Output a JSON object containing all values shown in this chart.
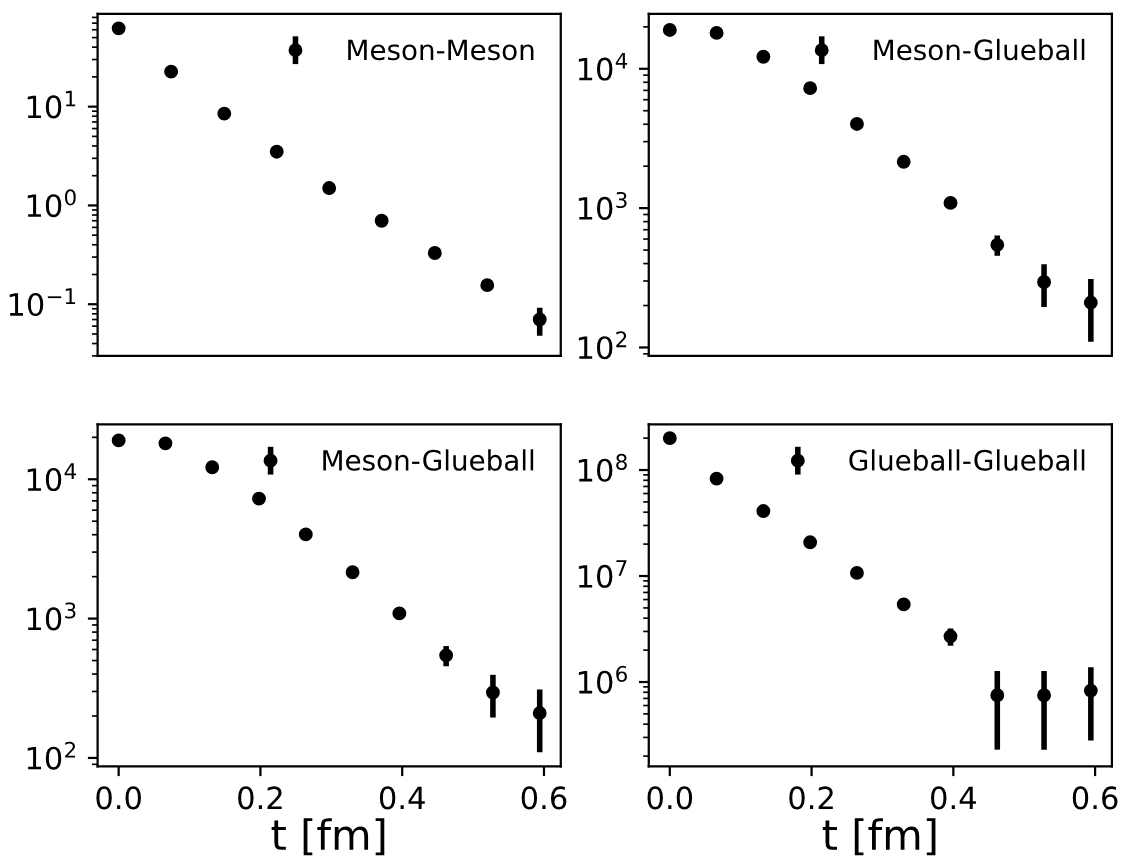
{
  "chart_data": [
    {
      "type": "scatter",
      "x": [
        0,
        0.074,
        0.149,
        0.223,
        0.297,
        0.371,
        0.446,
        0.52,
        0.594
      ],
      "xlim": [
        -0.0297,
        0.6237
      ],
      "log": "y",
      "ylim": [
        0.03,
        87
      ],
      "yticks": [
        {
          "value": 0.1,
          "label": "10$^{−1}$"
        },
        {
          "value": 1,
          "label": "10$^{0}$"
        },
        {
          "value": 10,
          "label": "10$^{1}$"
        }
      ],
      "tick_labels": "y",
      "legend": "top right",
      "marker": "circle",
      "series": [
        {
          "name": "Meson-Meson",
          "color": "#000000",
          "values": [
            62,
            22.6,
            8.5,
            3.5,
            1.5,
            0.7,
            0.33,
            0.156,
            0.07
          ],
          "errors": [
            null,
            null,
            null,
            null,
            null,
            null,
            null,
            0.015,
            0.022
          ]
        }
      ]
    },
    {
      "type": "scatter",
      "x": [
        0,
        0.066,
        0.132,
        0.198,
        0.264,
        0.33,
        0.396,
        0.462,
        0.528,
        0.594
      ],
      "xlim": [
        -0.0297,
        0.6237
      ],
      "log": "y",
      "ylim": [
        87,
        24800
      ],
      "yticks": [
        {
          "value": 100,
          "label": "10$^{2}$"
        },
        {
          "value": 1000,
          "label": "10$^{3}$"
        },
        {
          "value": 10000,
          "label": "10$^{4}$"
        }
      ],
      "tick_labels": "y",
      "legend": "top right",
      "marker": "circle",
      "series": [
        {
          "name": "Meson-Glueball",
          "color": "#000000",
          "values": [
            19000,
            18100,
            12200,
            7260,
            4020,
            2150,
            1090,
            545,
            295,
            210
          ],
          "errors": [
            null,
            null,
            null,
            null,
            null,
            null,
            null,
            90,
            100,
            100
          ]
        }
      ]
    },
    {
      "type": "scatter",
      "x": [
        0,
        0.066,
        0.132,
        0.198,
        0.264,
        0.33,
        0.396,
        0.462,
        0.528,
        0.594
      ],
      "xlim": [
        -0.0297,
        0.6237
      ],
      "xticks": [
        {
          "value": 0,
          "label": "0.0"
        },
        0.2,
        0.4,
        0.6
      ],
      "xlabel": "t [fm]",
      "log": "y",
      "ylim": [
        87,
        24800
      ],
      "yticks": [
        {
          "value": 100,
          "label": "10$^{2}$"
        },
        {
          "value": 1000,
          "label": "10$^{3}$"
        },
        {
          "value": 10000,
          "label": "10$^{4}$"
        }
      ],
      "legend": "top right",
      "marker": "circle",
      "series": [
        {
          "name": "Meson-Glueball",
          "color": "#000000",
          "values": [
            19000,
            18100,
            12200,
            7260,
            4020,
            2150,
            1090,
            545,
            295,
            210
          ],
          "errors": [
            null,
            null,
            null,
            null,
            null,
            null,
            null,
            90,
            100,
            100
          ]
        }
      ]
    },
    {
      "type": "scatter",
      "x": [
        0,
        0.066,
        0.132,
        0.198,
        0.264,
        0.33,
        0.396,
        0.462,
        0.528,
        0.594
      ],
      "xlim": [
        -0.0297,
        0.6237
      ],
      "xticks": [
        {
          "value": 0,
          "label": "0.0"
        },
        0.2,
        0.4,
        0.6
      ],
      "xlabel": "t [fm]",
      "log": "y",
      "ylim": [
        160000,
        270000000
      ],
      "yticks": [
        {
          "value": 1000000,
          "label": "10$^{6}$"
        },
        {
          "value": 10000000,
          "label": "10$^{7}$"
        },
        {
          "value": 100000000,
          "label": "10$^{8}$"
        }
      ],
      "legend": "top right",
      "marker": "circle",
      "series": [
        {
          "name": "Glueball-Glueball",
          "color": "#000000",
          "values": [
            200000000,
            83000000,
            41000000,
            20800000,
            10700000,
            5400000,
            2700000,
            750000,
            750000,
            830000
          ],
          "errors": [
            null,
            null,
            null,
            null,
            null,
            null,
            500000,
            520000,
            520000,
            550000
          ]
        }
      ]
    }
  ]
}
